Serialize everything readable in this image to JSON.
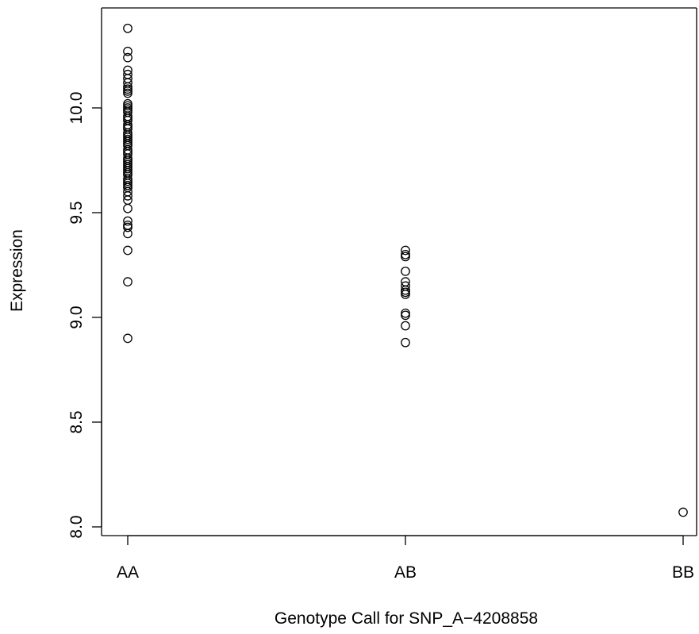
{
  "chart_data": {
    "type": "scatter",
    "title": "",
    "xlabel": "Genotype Call for SNP_A−4208858",
    "ylabel": "Expression",
    "categories": [
      "AA",
      "AB",
      "BB"
    ],
    "yticks": [
      "8.0",
      "8.5",
      "9.0",
      "9.5",
      "10.0"
    ],
    "ytick_values": [
      8.0,
      8.5,
      9.0,
      9.5,
      10.0
    ],
    "ylim": [
      7.97,
      10.43
    ],
    "grid": false,
    "marker": "open-circle",
    "colors": {
      "marker": "#000000",
      "axis": "#000000",
      "background": "#ffffff"
    },
    "series": [
      {
        "category": "AA",
        "values": [
          10.38,
          10.27,
          10.24,
          10.18,
          10.16,
          10.14,
          10.12,
          10.1,
          10.09,
          10.08,
          10.07,
          10.02,
          10.01,
          10.0,
          9.99,
          9.98,
          9.96,
          9.95,
          9.94,
          9.92,
          9.91,
          9.9,
          9.88,
          9.87,
          9.86,
          9.85,
          9.84,
          9.83,
          9.82,
          9.8,
          9.79,
          9.78,
          9.76,
          9.75,
          9.74,
          9.73,
          9.72,
          9.71,
          9.7,
          9.69,
          9.68,
          9.66,
          9.65,
          9.64,
          9.63,
          9.62,
          9.6,
          9.58,
          9.56,
          9.52,
          9.46,
          9.44,
          9.43,
          9.4,
          9.32,
          9.17,
          8.9
        ]
      },
      {
        "category": "AB",
        "values": [
          9.32,
          9.3,
          9.29,
          9.22,
          9.17,
          9.15,
          9.13,
          9.12,
          9.11,
          9.02,
          9.01,
          8.96,
          8.88
        ]
      },
      {
        "category": "BB",
        "values": [
          8.07
        ]
      }
    ]
  }
}
